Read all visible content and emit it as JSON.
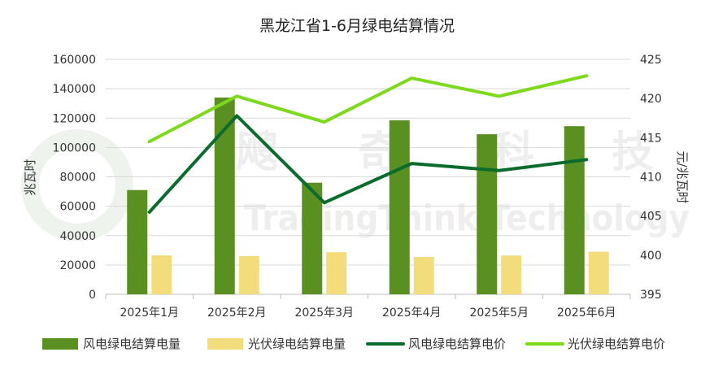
{
  "chart_data": {
    "type": "bar",
    "title": "黑龙江省1-6月绿电结算情况",
    "ylabel": "兆瓦时",
    "y2label": "元/兆瓦时",
    "categories": [
      "2025年1月",
      "2025年2月",
      "2025年3月",
      "2025年4月",
      "2025年5月",
      "2025年6月"
    ],
    "ylim": [
      0,
      160000
    ],
    "y2lim": [
      395,
      425
    ],
    "yticks": [
      "0",
      "20000",
      "40000",
      "60000",
      "80000",
      "100000",
      "120000",
      "140000",
      "160000"
    ],
    "y2ticks": [
      "395",
      "400",
      "405",
      "410",
      "415",
      "420",
      "425"
    ],
    "series": [
      {
        "name": "风电绿电结算电量",
        "kind": "bar",
        "axis": "left",
        "color": "#5a8f22",
        "values": [
          71000,
          134000,
          76000,
          118500,
          109000,
          114500
        ]
      },
      {
        "name": "光伏绿电结算电量",
        "kind": "bar",
        "axis": "left",
        "color": "#f2dc7c",
        "values": [
          26500,
          26000,
          28700,
          25500,
          26400,
          29000
        ]
      },
      {
        "name": "风电绿电结算电价",
        "kind": "line",
        "axis": "right",
        "color": "#0a6b2c",
        "values": [
          405.5,
          417.8,
          406.7,
          411.7,
          410.8,
          412.2
        ]
      },
      {
        "name": "光伏绿电结算电价",
        "kind": "line",
        "axis": "right",
        "color": "#7dd91c",
        "values": [
          414.5,
          420.3,
          417.0,
          422.6,
          420.3,
          422.9
        ]
      }
    ],
    "grid": true,
    "legend_position": "bottom"
  },
  "watermark": {
    "cn": [
      "飕",
      "奇",
      "科",
      "技"
    ],
    "en": "TradingThink Technology"
  }
}
